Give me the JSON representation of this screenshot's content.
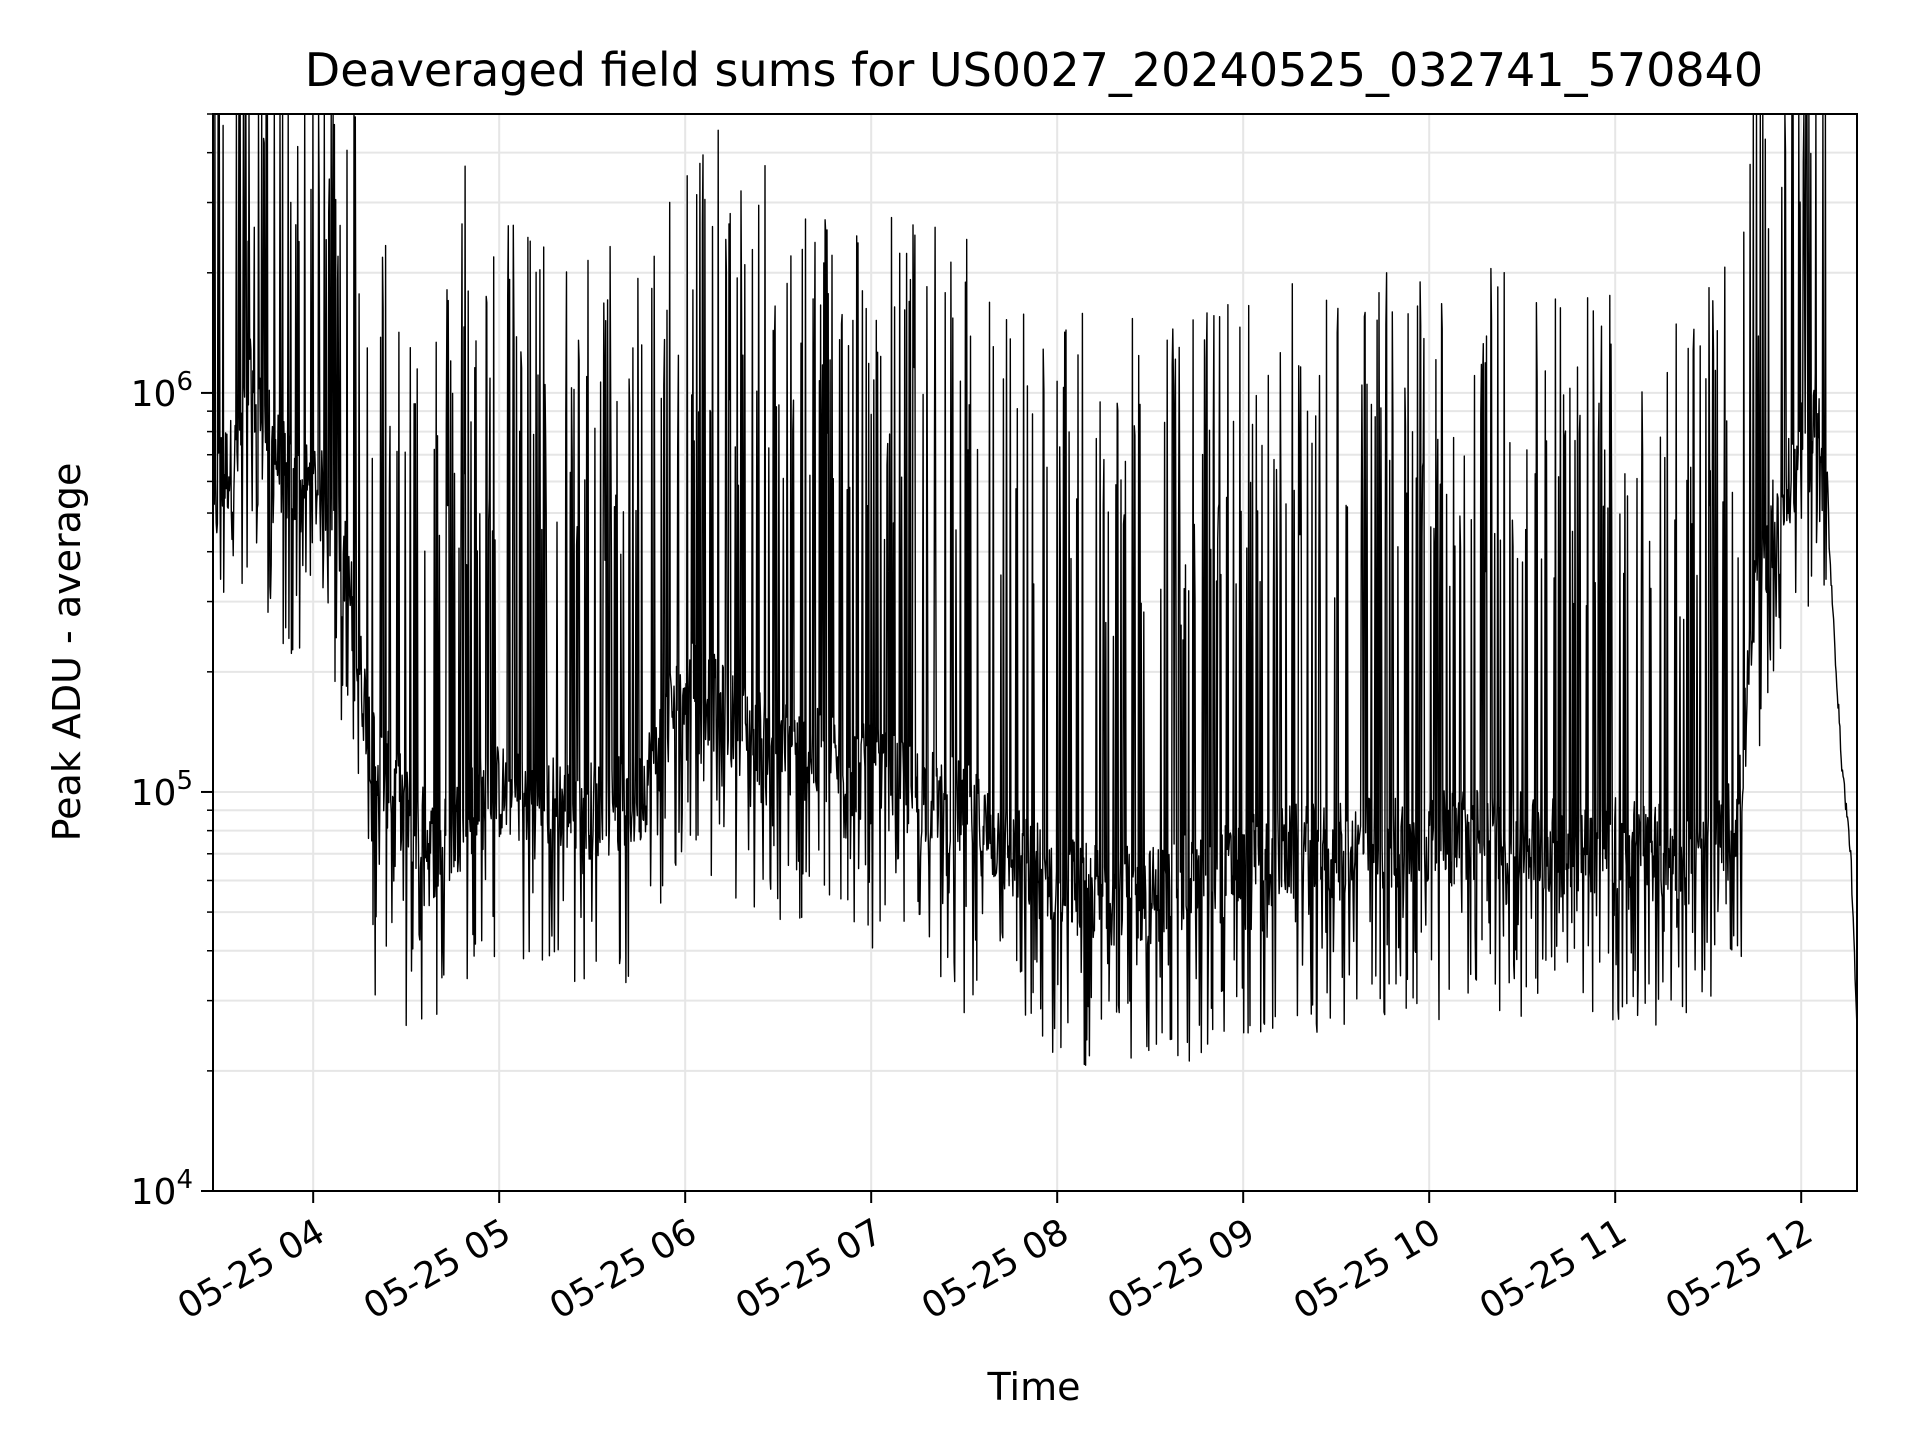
{
  "chart_data": {
    "type": "line",
    "title": "Deaveraged field sums for US0027_20240525_032741_570840",
    "xlabel": "Time",
    "ylabel": "Peak ADU - average",
    "yscale": "log",
    "ylim": [
      10000,
      5000000
    ],
    "xlim": [
      "2024-05-25 03:27:41",
      "2024-05-25 12:18:00"
    ],
    "grid": true,
    "line_color": "#000000",
    "grid_color": "#e6e6e6",
    "x_ticks": [
      {
        "t": "2024-05-25 04:00",
        "label": "05-25 04"
      },
      {
        "t": "2024-05-25 05:00",
        "label": "05-25 05"
      },
      {
        "t": "2024-05-25 06:00",
        "label": "05-25 06"
      },
      {
        "t": "2024-05-25 07:00",
        "label": "05-25 07"
      },
      {
        "t": "2024-05-25 08:00",
        "label": "05-25 08"
      },
      {
        "t": "2024-05-25 09:00",
        "label": "05-25 09"
      },
      {
        "t": "2024-05-25 10:00",
        "label": "05-25 10"
      },
      {
        "t": "2024-05-25 11:00",
        "label": "05-25 11"
      },
      {
        "t": "2024-05-25 12:00",
        "label": "05-25 12"
      }
    ],
    "y_ticks": [
      {
        "v": 10000,
        "base": "10",
        "exp": "4"
      },
      {
        "v": 100000,
        "base": "10",
        "exp": "5"
      },
      {
        "v": 1000000,
        "base": "10",
        "exp": "6"
      }
    ],
    "series": [
      {
        "points": [
          [
            "2024-05-25 03:27:41",
            450000
          ],
          [
            "2024-05-25 03:30",
            620000
          ],
          [
            "2024-05-25 03:35",
            680000
          ],
          [
            "2024-05-25 03:40",
            1050000
          ],
          [
            "2024-05-25 03:45",
            800000
          ],
          [
            "2024-05-25 03:50",
            650000
          ],
          [
            "2024-05-25 03:55",
            550000
          ],
          [
            "2024-05-25 04:00",
            600000
          ],
          [
            "2024-05-25 04:05",
            500000
          ],
          [
            "2024-05-25 04:10",
            400000
          ],
          [
            "2024-05-25 04:15",
            200000
          ],
          [
            "2024-05-25 04:20",
            120000
          ],
          [
            "2024-05-25 04:30",
            90000
          ],
          [
            "2024-05-25 04:40",
            70000
          ],
          [
            "2024-05-25 04:50",
            90000
          ],
          [
            "2024-05-25 05:00",
            100000
          ],
          [
            "2024-05-25 05:15",
            95000
          ],
          [
            "2024-05-25 05:30",
            90000
          ],
          [
            "2024-05-25 05:45",
            95000
          ],
          [
            "2024-05-25 06:00",
            200000
          ],
          [
            "2024-05-25 06:15",
            150000
          ],
          [
            "2024-05-25 06:30",
            130000
          ],
          [
            "2024-05-25 06:45",
            120000
          ],
          [
            "2024-05-25 07:00",
            110000
          ],
          [
            "2024-05-25 07:15",
            100000
          ],
          [
            "2024-05-25 07:30",
            90000
          ],
          [
            "2024-05-25 07:45",
            70000
          ],
          [
            "2024-05-25 08:00",
            60000
          ],
          [
            "2024-05-25 08:15",
            55000
          ],
          [
            "2024-05-25 08:30",
            55000
          ],
          [
            "2024-05-25 08:45",
            60000
          ],
          [
            "2024-05-25 09:00",
            65000
          ],
          [
            "2024-05-25 09:15",
            70000
          ],
          [
            "2024-05-25 09:30",
            70000
          ],
          [
            "2024-05-25 09:45",
            75000
          ],
          [
            "2024-05-25 10:00",
            75000
          ],
          [
            "2024-05-25 10:15",
            78000
          ],
          [
            "2024-05-25 10:30",
            75000
          ],
          [
            "2024-05-25 10:45",
            72000
          ],
          [
            "2024-05-25 11:00",
            75000
          ],
          [
            "2024-05-25 11:15",
            70000
          ],
          [
            "2024-05-25 11:30",
            65000
          ],
          [
            "2024-05-25 11:40",
            90000
          ],
          [
            "2024-05-25 11:45",
            300000
          ],
          [
            "2024-05-25 11:50",
            450000
          ],
          [
            "2024-05-25 11:55",
            550000
          ],
          [
            "2024-05-25 12:00",
            700000
          ],
          [
            "2024-05-25 12:05",
            900000
          ],
          [
            "2024-05-25 12:07",
            850000
          ],
          [
            "2024-05-25 12:10",
            300000
          ],
          [
            "2024-05-25 12:13",
            120000
          ],
          [
            "2024-05-25 12:16",
            70000
          ],
          [
            "2024-05-25 12:18",
            25000
          ]
        ],
        "spikes": [
          [
            "2024-05-25 03:39",
            2400000
          ],
          [
            "2024-05-25 03:41",
            2600000
          ],
          [
            "2024-05-25 04:08",
            2200000
          ],
          [
            "2024-05-25 04:48",
            2650000
          ],
          [
            "2024-05-25 04:49",
            3700000
          ],
          [
            "2024-05-25 04:50",
            1800000
          ],
          [
            "2024-05-25 05:10",
            2400000
          ],
          [
            "2024-05-25 05:50",
            2200000
          ],
          [
            "2024-05-25 05:55",
            3000000
          ],
          [
            "2024-05-25 12:01",
            2900000
          ]
        ],
        "dips": [
          [
            "2024-05-25 04:20",
            31000
          ],
          [
            "2024-05-25 04:30",
            26000
          ],
          [
            "2024-05-25 04:35",
            27000
          ],
          [
            "2024-05-25 07:30",
            28000
          ],
          [
            "2024-05-25 08:10",
            29000
          ],
          [
            "2024-05-25 08:20",
            28000
          ]
        ]
      }
    ]
  }
}
